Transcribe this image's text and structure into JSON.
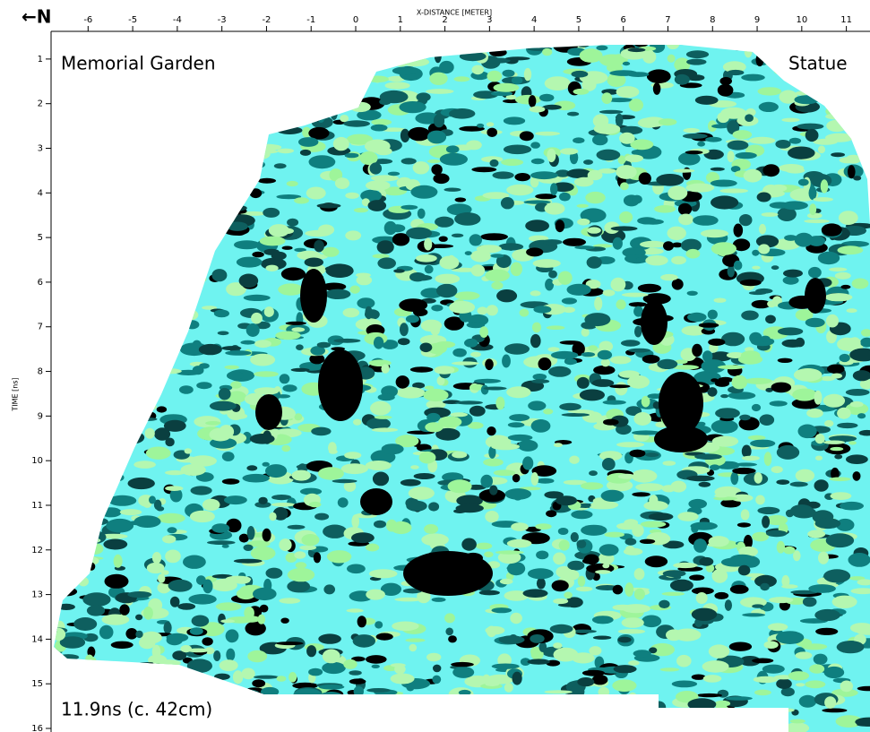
{
  "chart_data": {
    "type": "heatmap",
    "xlabel": "X-DISTANCE [METER]",
    "ylabel": "TIME [ns]",
    "north_label": "←N",
    "annotations": [
      "Memorial Garden",
      "Statue",
      "11.9ns (c. 42cm)"
    ],
    "xlim": [
      -6.83,
      11.53
    ],
    "xticks": [
      -6,
      -5,
      -4,
      -3,
      -2,
      -1,
      0,
      1,
      2,
      3,
      4,
      5,
      6,
      7,
      8,
      9,
      10,
      11
    ],
    "ylim": [
      0.38,
      16.08
    ],
    "yticks": [
      1,
      2,
      3,
      4,
      5,
      6,
      7,
      8,
      9,
      10,
      11,
      12,
      13,
      14,
      15,
      16
    ],
    "y_inverted": true
  }
}
